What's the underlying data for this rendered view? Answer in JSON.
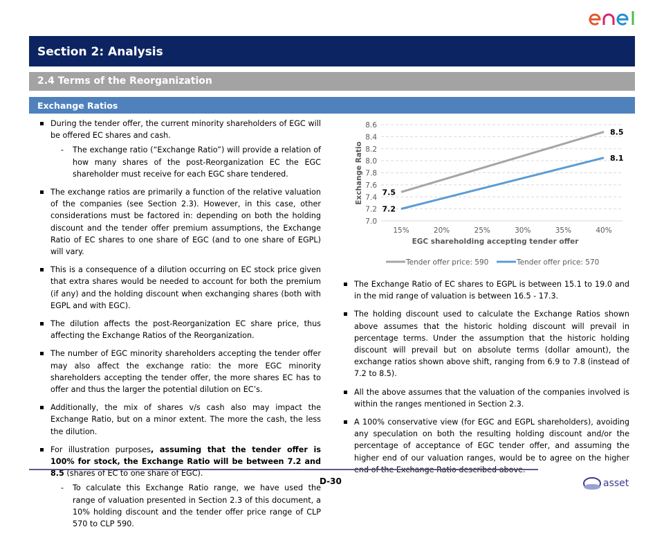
{
  "logos": {
    "top": "enel",
    "bottom": "asset"
  },
  "header": {
    "section": "Section 2: Analysis",
    "subsection": "2.4 Terms of the Reorganization",
    "topic": "Exchange Ratios"
  },
  "left": {
    "b1": "During the tender offer, the current minority shareholders of EGC will be offered EC shares and cash.",
    "b1s": "The exchange ratio (“Exchange Ratio”) will provide a relation of how many shares of the post-Reorganization EC the EGC shareholder must receive for each EGC share tendered.",
    "b2": "The exchange ratios are primarily a function of the relative valuation of the companies (see Section 2.3). However, in this case, other considerations must be factored in: depending on both the holding discount and the tender offer premium assumptions, the Exchange Ratio of EC shares to one share of EGC (and to one share of EGPL) will vary.",
    "b3": "This is a consequence of a dilution occurring on EC stock price given that extra shares would be needed to account for both the premium (if any) and the holding discount when exchanging shares (both with EGPL and with EGC).",
    "b4": "The dilution affects the post-Reorganization EC share price, thus affecting the Exchange Ratios of the Reorganization.",
    "b5": "The number of EGC minority shareholders accepting the tender offer may also affect the exchange ratio: the more EGC minority shareholders accepting the tender offer, the more shares EC has to offer and thus the larger the potential dilution on EC’s.",
    "b6": "Additionally, the mix of shares v/s cash also may impact the Exchange Ratio, but on a minor extent. The more the cash, the less the dilution.",
    "b7a": "For illustration purposes",
    "b7b": ", assuming that the tender offer is 100% for stock, the Exchange Ratio will be between 7.2 and 8.5",
    "b7c": " (shares of EC to one share of EGC).",
    "b7s": "To calculate this Exchange Ratio range, we have used the range of valuation presented in Section 2.3 of this document, a 10% holding discount and the tender offer price range of CLP 570 to CLP 590."
  },
  "right": {
    "b1": "The Exchange Ratio of EC shares to EGPL is between 15.1 to 19.0 and in the mid range of valuation is between 16.5 - 17.3.",
    "b2": "The holding discount used to calculate the Exchange Ratios shown above assumes that the historic holding discount will prevail in percentage terms. Under the assumption that the historic holding discount will prevail but on absolute terms (dollar amount), the exchange ratios shown above shift, ranging from 6.9 to 7.8 (instead of 7.2 to 8.5).",
    "b3": "All the above assumes that the valuation of the companies involved is within the ranges mentioned in Section 2.3.",
    "b4": "A 100% conservative view (for EGC and EGPL shareholders), avoiding any speculation on both the resulting holding discount and/or the percentage of acceptance of EGC tender offer, and assuming the higher end of our valuation ranges, would be to agree on the higher end of the Exchange Ratio described above."
  },
  "chart_data": {
    "type": "line",
    "title": "",
    "xlabel": "EGC shareholding accepting tender offer",
    "ylabel": "Exchange Ratio",
    "categories": [
      "15%",
      "20%",
      "25%",
      "30%",
      "35%",
      "40%"
    ],
    "yticks": [
      "7.0",
      "7.2",
      "7.4",
      "7.6",
      "7.8",
      "8.0",
      "8.2",
      "8.4",
      "8.6"
    ],
    "ylim": [
      7.0,
      8.6
    ],
    "grid": true,
    "legend": "bottom",
    "series": [
      {
        "name": "Tender offer price: 590",
        "color": "#a5a5a5",
        "values": [
          7.48,
          7.68,
          7.88,
          8.08,
          8.28,
          8.48
        ],
        "labels": {
          "first": "7.5",
          "last": "8.5"
        }
      },
      {
        "name": "Tender offer price: 570",
        "color": "#5b9bd5",
        "values": [
          7.2,
          7.37,
          7.54,
          7.71,
          7.88,
          8.05
        ],
        "labels": {
          "first": "7.2",
          "last": "8.1"
        }
      }
    ]
  },
  "footer": {
    "page": "D-30"
  }
}
